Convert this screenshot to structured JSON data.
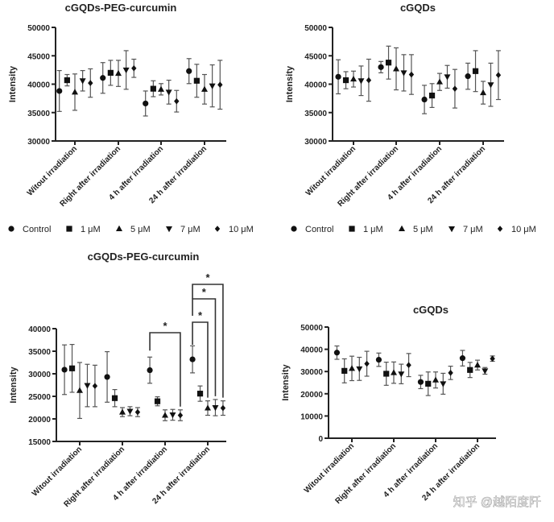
{
  "chart_data": [
    {
      "type": "scatter",
      "title": "cGQDs-PEG-curcumin",
      "ylabel": "Intensity",
      "ylim": [
        30000,
        50000
      ],
      "yticks": [
        "30000",
        "35000",
        "40000",
        "45000",
        "50000"
      ],
      "categories": [
        "Witout irradiation",
        "Right after irradiation",
        "4 h after irradiation",
        "24 h after irradiation"
      ],
      "series": [
        {
          "name": "Control",
          "values": [
            38800,
            41100,
            36600,
            42300
          ],
          "errors": [
            3600,
            2700,
            2200,
            2200
          ]
        },
        {
          "name": "1 μM",
          "values": [
            40700,
            42000,
            39200,
            40600
          ],
          "errors": [
            1000,
            2200,
            1400,
            2900
          ]
        },
        {
          "name": "5 μM",
          "values": [
            38600,
            41900,
            39100,
            39100
          ],
          "errors": [
            3200,
            2300,
            1000,
            2600
          ]
        },
        {
          "name": "7 μM",
          "values": [
            40600,
            42500,
            38600,
            39700
          ],
          "errors": [
            1800,
            3400,
            2100,
            3700
          ]
        },
        {
          "name": "10 μM",
          "values": [
            40200,
            42800,
            37000,
            39900
          ],
          "errors": [
            2500,
            1600,
            1900,
            4300
          ]
        }
      ]
    },
    {
      "type": "scatter",
      "title": "cGQDs",
      "ylabel": "Intensity",
      "ylim": [
        30000,
        50000
      ],
      "yticks": [
        "30000",
        "35000",
        "40000",
        "45000",
        "50000"
      ],
      "categories": [
        "Witout irradiation",
        "Right after irradiation",
        "4 h after irradiation",
        "24 h after irradiation"
      ],
      "series": [
        {
          "name": "Control",
          "values": [
            41300,
            43000,
            37300,
            41400
          ],
          "errors": [
            3000,
            1000,
            2500,
            2300
          ]
        },
        {
          "name": "1 μM",
          "values": [
            40700,
            43800,
            38000,
            42300
          ],
          "errors": [
            1500,
            2900,
            2100,
            3600
          ]
        },
        {
          "name": "5 μM",
          "values": [
            40900,
            42700,
            40400,
            38500
          ],
          "errors": [
            1400,
            3700,
            1500,
            2000
          ]
        },
        {
          "name": "7 μM",
          "values": [
            40600,
            42000,
            41300,
            39900
          ],
          "errors": [
            2600,
            3200,
            2000,
            3800
          ]
        },
        {
          "name": "10 μM",
          "values": [
            40700,
            41700,
            39200,
            41600
          ],
          "errors": [
            3700,
            3500,
            3400,
            4300
          ]
        }
      ]
    },
    {
      "type": "scatter",
      "title": "cGQDs-PEG-curcumin",
      "ylabel": "Intensity",
      "ylim": [
        15000,
        40000
      ],
      "yticks": [
        "15000",
        "20000",
        "25000",
        "30000",
        "35000",
        "40000"
      ],
      "categories": [
        "Witout irradiation",
        "Right after irradiation",
        "4 h after irradiation",
        "24 h after irradiation"
      ],
      "series": [
        {
          "name": "Control",
          "values": [
            30900,
            29300,
            30800,
            33200
          ],
          "errors": [
            5500,
            5600,
            2900,
            3000
          ]
        },
        {
          "name": "1 μM",
          "values": [
            31200,
            24600,
            23900,
            25600
          ],
          "errors": [
            5300,
            1900,
            1000,
            1700
          ]
        },
        {
          "name": "5 μM",
          "values": [
            26300,
            21500,
            20800,
            22400
          ],
          "errors": [
            6200,
            1000,
            1200,
            1600
          ]
        },
        {
          "name": "7 μM",
          "values": [
            27400,
            21700,
            20900,
            22500
          ],
          "errors": [
            4700,
            1000,
            1200,
            1800
          ]
        },
        {
          "name": "10 μM",
          "values": [
            27300,
            21500,
            20800,
            22400
          ],
          "errors": [
            4600,
            1000,
            1200,
            1600
          ]
        }
      ],
      "annotations": [
        {
          "group": 2,
          "from": 0,
          "to": 4,
          "text": "*"
        },
        {
          "group": 3,
          "from": 0,
          "to": 2,
          "text": "*"
        },
        {
          "group": 3,
          "from": 0,
          "to": 3,
          "text": "*"
        },
        {
          "group": 3,
          "from": 0,
          "to": 4,
          "text": "*"
        }
      ]
    },
    {
      "type": "scatter",
      "title": "cGQDs",
      "ylabel": "Intensity",
      "ylim": [
        0,
        50000
      ],
      "yticks": [
        "0",
        "10000",
        "20000",
        "30000",
        "40000",
        "50000"
      ],
      "categories": [
        "Witout irradiation",
        "Right after irradiation",
        "4 h after irradiation",
        "24 h after irradiation"
      ],
      "series": [
        {
          "name": "Control",
          "values": [
            38500,
            35300,
            25300,
            36000
          ],
          "errors": [
            3000,
            3000,
            3000,
            3500
          ]
        },
        {
          "name": "1 μM",
          "values": [
            30300,
            29000,
            24500,
            30700
          ],
          "errors": [
            5400,
            5200,
            5300,
            3400
          ]
        },
        {
          "name": "5 μM",
          "values": [
            31400,
            29500,
            26200,
            32900
          ],
          "errors": [
            5500,
            4800,
            3600,
            2200
          ]
        },
        {
          "name": "7 μM",
          "values": [
            31200,
            28900,
            24500,
            30300
          ],
          "errors": [
            5200,
            4400,
            4700,
            1500
          ]
        },
        {
          "name": "10 μM",
          "values": [
            33500,
            32900,
            29400,
            35800
          ],
          "errors": [
            5600,
            5200,
            3000,
            1200
          ]
        }
      ]
    }
  ],
  "legend": [
    "Control",
    "1 μM",
    "5 μM",
    "7 μM",
    "10 μM"
  ],
  "watermark": "知乎 @越陌度阡"
}
